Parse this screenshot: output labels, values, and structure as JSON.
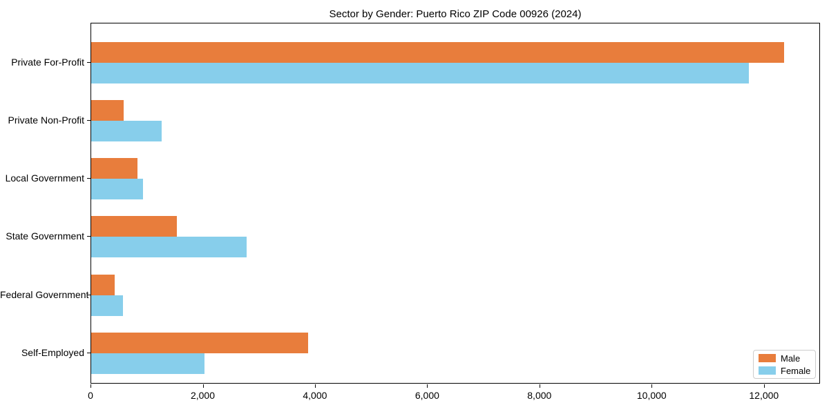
{
  "chart_data": {
    "type": "bar",
    "orientation": "horizontal",
    "title": "Sector by Gender: Puerto Rico ZIP Code 00926 (2024)",
    "categories": [
      "Private For-Profit",
      "Private Non-Profit",
      "Local Government",
      "State Government",
      "Federal Government",
      "Self-Employed"
    ],
    "series": [
      {
        "name": "Male",
        "color": "#e87d3c",
        "values": [
          12350,
          580,
          820,
          1520,
          420,
          3870
        ]
      },
      {
        "name": "Female",
        "color": "#87ceeb",
        "values": [
          11720,
          1260,
          920,
          2770,
          560,
          2020
        ]
      }
    ],
    "xlabel": "",
    "ylabel": "",
    "xlim": [
      0,
      13000
    ],
    "xticks": [
      0,
      2000,
      4000,
      6000,
      8000,
      10000,
      12000
    ],
    "xtick_labels": [
      "0",
      "2,000",
      "4,000",
      "6,000",
      "8,000",
      "10,000",
      "12,000"
    ],
    "grid": false,
    "legend": {
      "position": "lower-right",
      "entries": [
        {
          "label": "Male",
          "color": "#e87d3c"
        },
        {
          "label": "Female",
          "color": "#87ceeb"
        }
      ]
    }
  }
}
